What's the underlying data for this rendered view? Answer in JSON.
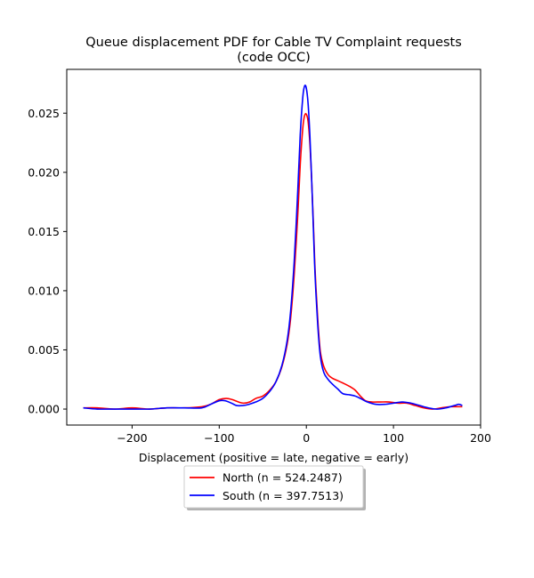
{
  "chart_data": {
    "type": "line",
    "title_line1": "Queue displacement PDF for Cable TV Complaint  requests",
    "title_line2": "(code OCC)",
    "xlabel": "Displacement (positive = late, negative = early)",
    "ylabel": "",
    "xlim": [
      -275,
      200
    ],
    "ylim": [
      -0.00135,
      0.0287
    ],
    "xticks": [
      -200,
      -100,
      0,
      100,
      200
    ],
    "xtick_labels": [
      "−200",
      "−100",
      "0",
      "100",
      "200"
    ],
    "yticks": [
      0.0,
      0.005,
      0.01,
      0.015,
      0.02,
      0.025
    ],
    "ytick_labels": [
      "0.000",
      "0.005",
      "0.010",
      "0.015",
      "0.020",
      "0.025"
    ],
    "grid": false,
    "legend_position": "below-center",
    "series": [
      {
        "name": "North (n = 524.2487)",
        "color": "#ff0000",
        "x": [
          -256,
          -240,
          -220,
          -200,
          -180,
          -160,
          -140,
          -120,
          -110,
          -100,
          -92,
          -85,
          -78,
          -72,
          -65,
          -58,
          -50,
          -42,
          -35,
          -28,
          -22,
          -18,
          -14,
          -10,
          -7,
          -4,
          -2,
          0,
          2,
          4,
          6,
          8,
          10,
          13,
          16,
          20,
          25,
          30,
          36,
          42,
          50,
          56,
          62,
          68,
          75,
          85,
          95,
          105,
          115,
          125,
          135,
          145,
          155,
          165,
          175,
          179
        ],
        "y": [
          0.0001,
          0.0001,
          0.0,
          0.0001,
          0.0,
          0.0001,
          0.0001,
          0.0002,
          0.0004,
          0.0008,
          0.0009,
          0.0008,
          0.0006,
          0.0005,
          0.0006,
          0.0009,
          0.0011,
          0.0016,
          0.0023,
          0.0036,
          0.0055,
          0.0077,
          0.0113,
          0.0162,
          0.0207,
          0.0238,
          0.0248,
          0.0249,
          0.0243,
          0.0225,
          0.0195,
          0.0158,
          0.0118,
          0.0077,
          0.0049,
          0.0036,
          0.0029,
          0.0026,
          0.0024,
          0.0022,
          0.0019,
          0.0016,
          0.0011,
          0.0007,
          0.0006,
          0.0006,
          0.0006,
          0.0005,
          0.0005,
          0.0003,
          0.0001,
          0.0,
          0.0001,
          0.0002,
          0.0002,
          0.0002
        ]
      },
      {
        "name": "South (n = 397.7513)",
        "color": "#0000ff",
        "x": [
          -256,
          -240,
          -220,
          -200,
          -180,
          -160,
          -140,
          -120,
          -110,
          -100,
          -93,
          -86,
          -80,
          -73,
          -66,
          -58,
          -50,
          -42,
          -35,
          -28,
          -22,
          -18,
          -14,
          -10,
          -7,
          -4,
          -2,
          0,
          2,
          4,
          6,
          8,
          10,
          13,
          16,
          20,
          25,
          30,
          36,
          42,
          50,
          56,
          62,
          70,
          80,
          90,
          100,
          110,
          120,
          130,
          140,
          150,
          160,
          170,
          175,
          179
        ],
        "y": [
          0.0001,
          0.0,
          0.0,
          0.0,
          0.0,
          0.0001,
          0.0001,
          0.0001,
          0.0004,
          0.0007,
          0.0007,
          0.0005,
          0.0003,
          0.0003,
          0.0004,
          0.0006,
          0.0009,
          0.0015,
          0.0023,
          0.0037,
          0.0058,
          0.0083,
          0.0124,
          0.0182,
          0.0232,
          0.0264,
          0.0273,
          0.0271,
          0.0258,
          0.0232,
          0.0196,
          0.0154,
          0.0113,
          0.0072,
          0.0045,
          0.0031,
          0.0025,
          0.0021,
          0.0017,
          0.0013,
          0.0012,
          0.0011,
          0.0009,
          0.0006,
          0.0004,
          0.0004,
          0.0005,
          0.0006,
          0.0005,
          0.0003,
          0.0001,
          0.0,
          0.0001,
          0.0003,
          0.0004,
          0.0003
        ]
      }
    ]
  }
}
